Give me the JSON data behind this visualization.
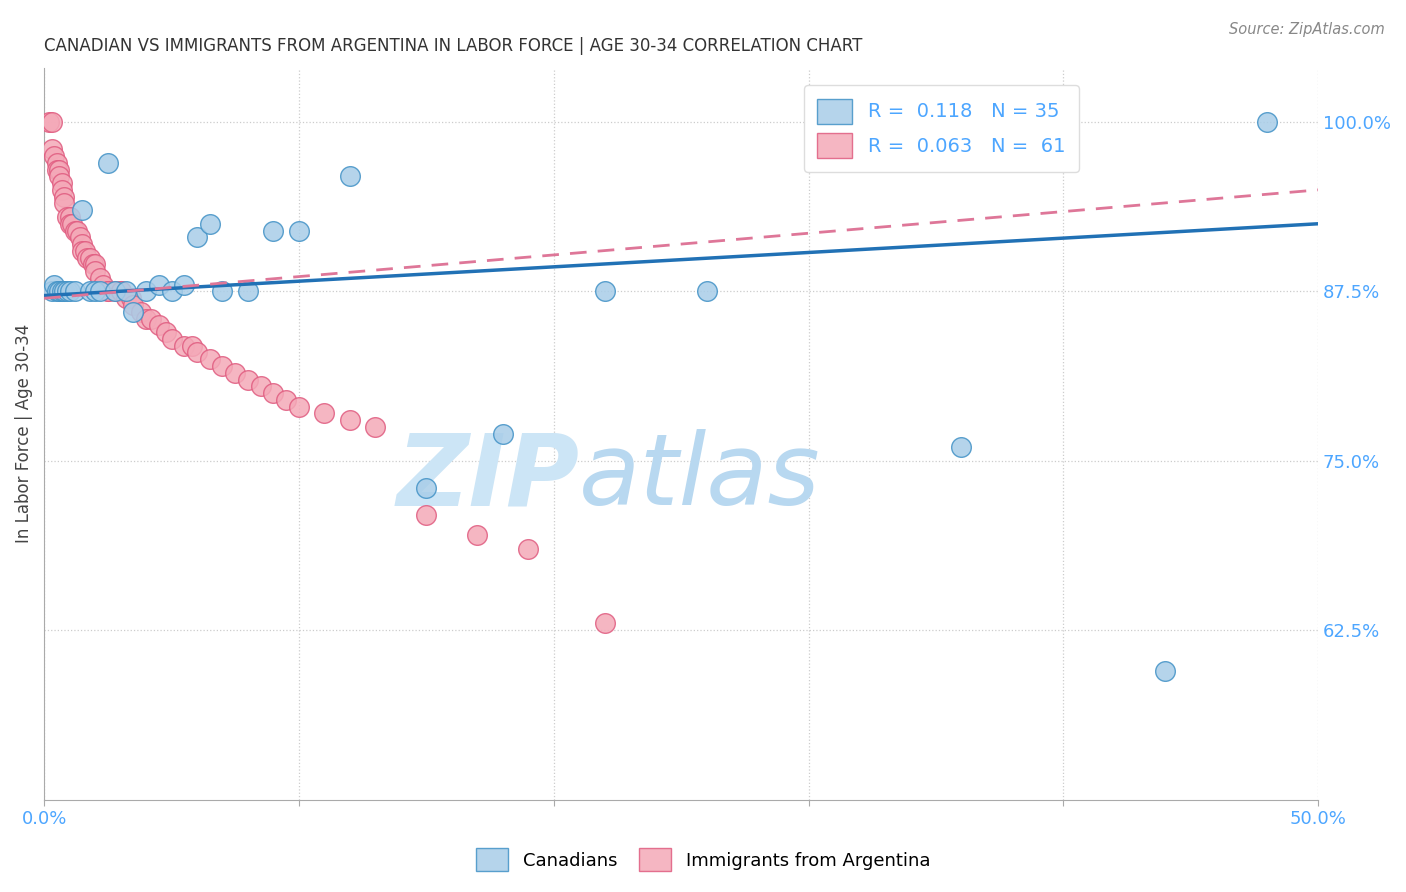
{
  "title": "CANADIAN VS IMMIGRANTS FROM ARGENTINA IN LABOR FORCE | AGE 30-34 CORRELATION CHART",
  "source": "Source: ZipAtlas.com",
  "ylabel_label": "In Labor Force | Age 30-34",
  "x_min": 0.0,
  "x_max": 0.5,
  "y_min": 0.5,
  "y_max": 1.04,
  "y_ticks": [
    0.625,
    0.75,
    0.875,
    1.0
  ],
  "y_tick_labels": [
    "62.5%",
    "75.0%",
    "87.5%",
    "100.0%"
  ],
  "blue_color": "#a8cde8",
  "pink_color": "#f4a9b8",
  "blue_edge_color": "#4292c6",
  "pink_edge_color": "#e05c80",
  "blue_line_color": "#2171b5",
  "pink_line_color": "#de7698",
  "legend_blue_label": "R =  0.118   N = 35",
  "legend_pink_label": "R =  0.063   N =  61",
  "blue_trend_x0": 0.0,
  "blue_trend_y0": 0.872,
  "blue_trend_x1": 0.5,
  "blue_trend_y1": 0.925,
  "pink_trend_x0": 0.0,
  "pink_trend_y0": 0.87,
  "pink_trend_x1": 0.5,
  "pink_trend_y1": 0.95,
  "canadians_x": [
    0.003,
    0.004,
    0.005,
    0.006,
    0.007,
    0.008,
    0.009,
    0.01,
    0.012,
    0.015,
    0.018,
    0.02,
    0.022,
    0.025,
    0.028,
    0.032,
    0.035,
    0.04,
    0.045,
    0.05,
    0.055,
    0.06,
    0.065,
    0.07,
    0.08,
    0.09,
    0.1,
    0.12,
    0.15,
    0.18,
    0.22,
    0.26,
    0.36,
    0.44,
    0.48
  ],
  "canadians_y": [
    0.875,
    0.88,
    0.875,
    0.875,
    0.875,
    0.875,
    0.875,
    0.875,
    0.875,
    0.935,
    0.875,
    0.875,
    0.875,
    0.97,
    0.875,
    0.875,
    0.86,
    0.875,
    0.88,
    0.875,
    0.88,
    0.915,
    0.925,
    0.875,
    0.875,
    0.92,
    0.92,
    0.96,
    0.73,
    0.77,
    0.875,
    0.875,
    0.76,
    0.595,
    1.0
  ],
  "argentina_x": [
    0.002,
    0.003,
    0.003,
    0.004,
    0.005,
    0.005,
    0.006,
    0.006,
    0.007,
    0.007,
    0.008,
    0.008,
    0.009,
    0.01,
    0.01,
    0.011,
    0.012,
    0.013,
    0.014,
    0.015,
    0.015,
    0.016,
    0.017,
    0.018,
    0.019,
    0.02,
    0.02,
    0.022,
    0.023,
    0.025,
    0.025,
    0.028,
    0.03,
    0.03,
    0.032,
    0.034,
    0.035,
    0.038,
    0.04,
    0.042,
    0.045,
    0.048,
    0.05,
    0.055,
    0.058,
    0.06,
    0.065,
    0.07,
    0.075,
    0.08,
    0.085,
    0.09,
    0.095,
    0.1,
    0.11,
    0.12,
    0.13,
    0.15,
    0.17,
    0.19,
    0.22
  ],
  "argentina_y": [
    1.0,
    1.0,
    0.98,
    0.975,
    0.97,
    0.965,
    0.965,
    0.96,
    0.955,
    0.95,
    0.945,
    0.94,
    0.93,
    0.93,
    0.925,
    0.925,
    0.92,
    0.92,
    0.915,
    0.91,
    0.905,
    0.905,
    0.9,
    0.9,
    0.895,
    0.895,
    0.89,
    0.885,
    0.88,
    0.875,
    0.875,
    0.875,
    0.875,
    0.875,
    0.87,
    0.87,
    0.865,
    0.86,
    0.855,
    0.855,
    0.85,
    0.845,
    0.84,
    0.835,
    0.835,
    0.83,
    0.825,
    0.82,
    0.815,
    0.81,
    0.805,
    0.8,
    0.795,
    0.79,
    0.785,
    0.78,
    0.775,
    0.71,
    0.695,
    0.685,
    0.63
  ],
  "watermark_zip": "ZIP",
  "watermark_atlas": "atlas",
  "watermark_color": "#cce5f6",
  "background_color": "#ffffff",
  "grid_color": "#cccccc",
  "grid_linestyle": "dotted"
}
